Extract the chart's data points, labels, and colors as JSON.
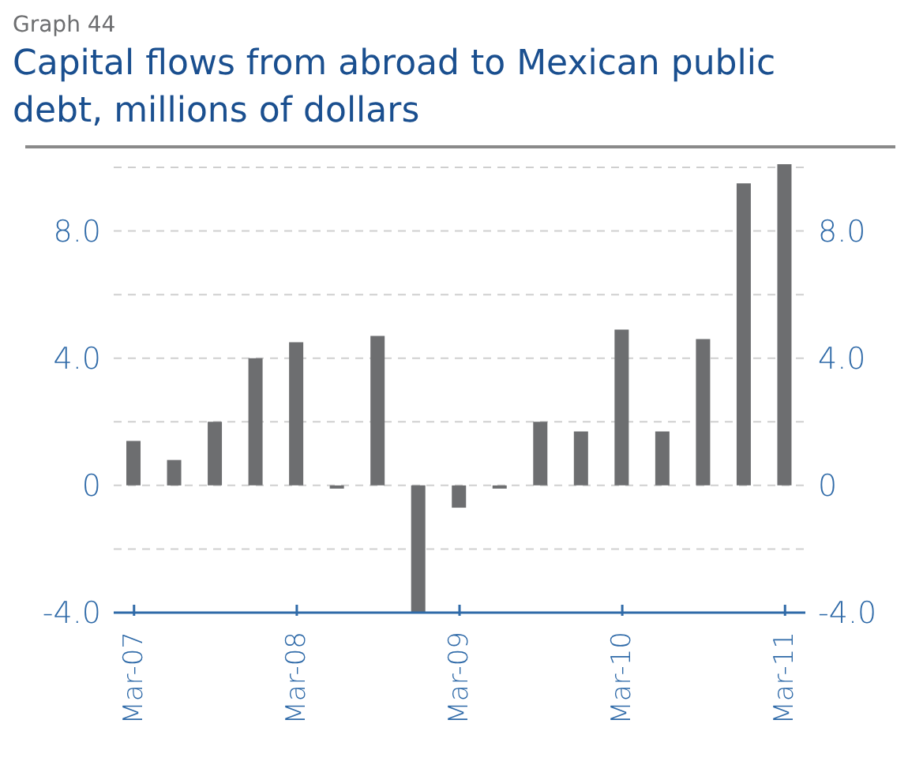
{
  "chart_data": {
    "type": "bar",
    "title": "Capital flows from abroad to Mexican public debt, millions of dollars",
    "annotations": [
      "Graph 44"
    ],
    "categories": [
      "Mar-07",
      null,
      null,
      null,
      "Mar-08",
      null,
      null,
      null,
      "Mar-09",
      null,
      null,
      null,
      "Mar-10",
      null,
      null,
      null,
      "Mar-11"
    ],
    "values": [
      1.4,
      0.8,
      2.0,
      4.0,
      4.5,
      -0.1,
      4.7,
      -4.0,
      -0.7,
      -0.1,
      2.0,
      1.7,
      4.9,
      1.7,
      4.6,
      9.5,
      10.1
    ],
    "color": "#6d6e70",
    "ylim": [
      -4,
      10.2
    ],
    "yticks": [
      {
        "value": -4,
        "label": "-4.0"
      },
      {
        "value": -2,
        "label": null
      },
      0,
      {
        "value": 2,
        "label": null
      },
      {
        "value": 4,
        "label": "4.0"
      },
      {
        "value": 6,
        "label": null
      },
      {
        "value": 8,
        "label": "8.0"
      },
      {
        "value": 10,
        "label": null
      }
    ],
    "y2lim": [
      -4,
      10.2
    ],
    "y2ticks": [
      {
        "value": -4,
        "label": "-4.0"
      },
      {
        "value": -2,
        "label": null
      },
      0,
      {
        "value": 2,
        "label": null
      },
      {
        "value": 4,
        "label": "4.0"
      },
      {
        "value": 6,
        "label": null
      },
      {
        "value": 8,
        "label": "8.0"
      },
      {
        "value": 10,
        "label": null
      }
    ],
    "grid": "y"
  }
}
